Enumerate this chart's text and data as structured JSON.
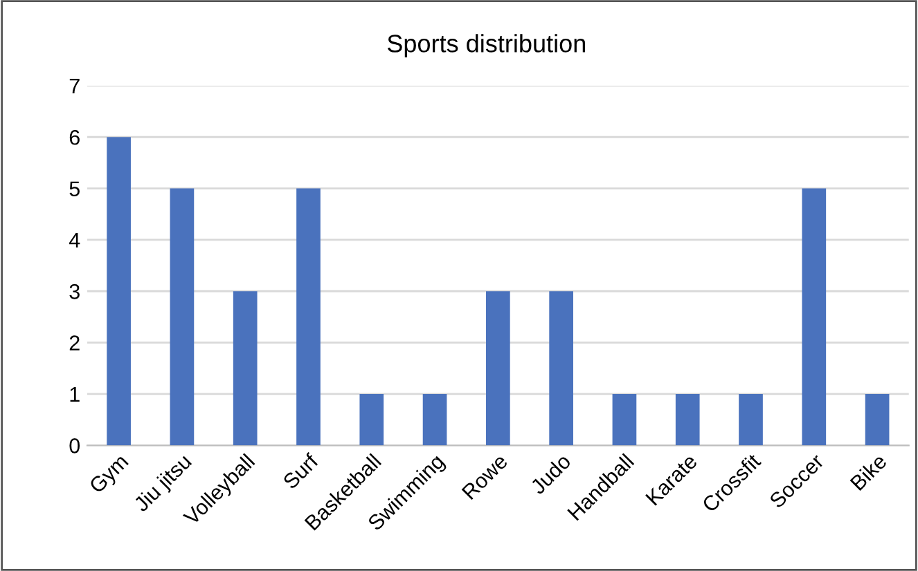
{
  "chart_data": {
    "type": "bar",
    "title": "Sports distribution",
    "categories": [
      "Gym",
      "Jiu jitsu",
      "Volleyball",
      "Surf",
      "Basketball",
      "Swimming",
      "Rowe",
      "Judo",
      "Handball",
      "Karate",
      "Crossfit",
      "Soccer",
      "Bike"
    ],
    "values": [
      6,
      5,
      3,
      5,
      1,
      1,
      3,
      3,
      1,
      1,
      1,
      5,
      1
    ],
    "color": "#4a72bd",
    "ylim": [
      0,
      7
    ],
    "yticks": [
      0,
      1,
      2,
      3,
      4,
      5,
      6,
      7
    ],
    "grid": "y"
  }
}
